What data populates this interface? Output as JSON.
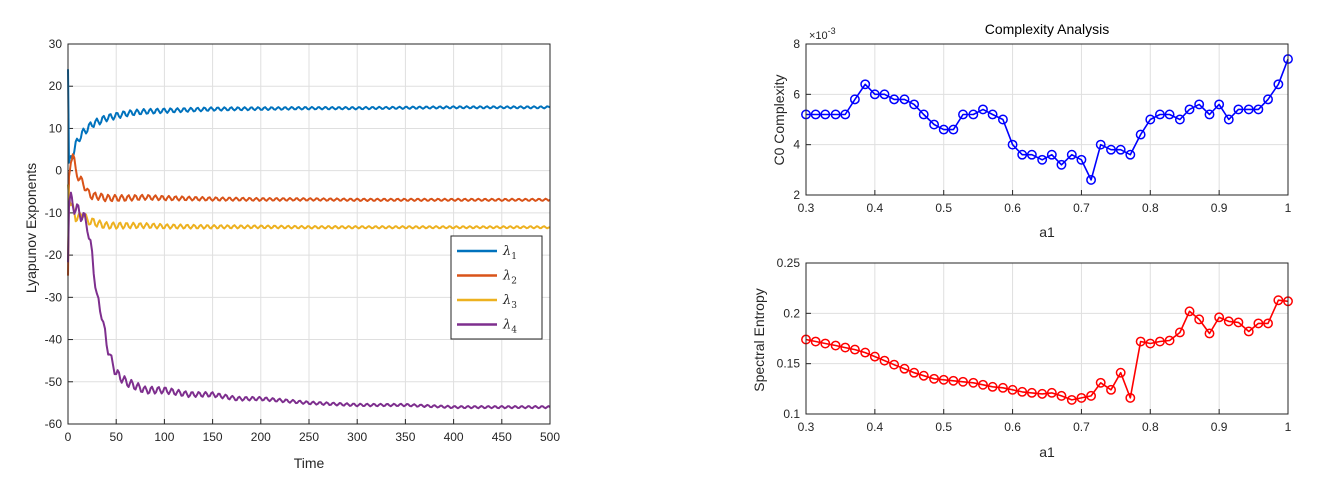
{
  "chart_data": [
    {
      "type": "line",
      "xlabel": "Time",
      "ylabel": "Lyapunov Exponents",
      "xlim": [
        0,
        500
      ],
      "ylim": [
        -60,
        30
      ],
      "xticks": [
        "0",
        "50",
        "100",
        "150",
        "200",
        "250",
        "300",
        "350",
        "400",
        "450",
        "500"
      ],
      "yticks": [
        "-60",
        "-50",
        "-40",
        "-30",
        "-20",
        "-10",
        "0",
        "10",
        "20",
        "30"
      ],
      "grid": true,
      "legend_position": "right",
      "series": [
        {
          "name": "λ1",
          "sub": "1",
          "color": "#0072BD",
          "x": [
            0,
            1,
            3,
            5,
            8,
            12,
            16,
            20,
            25,
            30,
            40,
            50,
            60,
            70,
            80,
            90,
            100,
            150,
            200,
            250,
            300,
            350,
            400,
            450,
            500
          ],
          "y": [
            24,
            1,
            3,
            4,
            6,
            8,
            9,
            10,
            11,
            11.5,
            12.5,
            13,
            13.5,
            13.8,
            14,
            14.1,
            14.2,
            14.6,
            14.7,
            14.8,
            14.8,
            14.9,
            15,
            15,
            15
          ]
        },
        {
          "name": "λ2",
          "sub": "2",
          "color": "#D95319",
          "x": [
            0,
            1,
            3,
            5,
            8,
            12,
            16,
            20,
            25,
            30,
            40,
            50,
            60,
            80,
            100,
            150,
            200,
            250,
            300,
            350,
            400,
            450,
            500
          ],
          "y": [
            -26,
            -2,
            3,
            4,
            0,
            -2,
            -3,
            -5,
            -6,
            -6,
            -6.5,
            -6.5,
            -6.5,
            -6.3,
            -6.5,
            -6.7,
            -6.8,
            -6.8,
            -6.9,
            -6.9,
            -6.9,
            -6.9,
            -6.9
          ]
        },
        {
          "name": "λ3",
          "sub": "3",
          "color": "#EDB120",
          "x": [
            0,
            1,
            3,
            5,
            8,
            12,
            16,
            20,
            25,
            30,
            40,
            50,
            60,
            80,
            100,
            150,
            200,
            250,
            300,
            350,
            400,
            450,
            500
          ],
          "y": [
            -3,
            -5,
            -8,
            -9,
            -11,
            -11,
            -10,
            -12,
            -12,
            -12.5,
            -13,
            -13,
            -13,
            -13,
            -13.2,
            -13.3,
            -13.3,
            -13.4,
            -13.4,
            -13.4,
            -13.4,
            -13.4,
            -13.4
          ]
        },
        {
          "name": "λ4",
          "sub": "4",
          "color": "#7E2F8E",
          "x": [
            0,
            1,
            3,
            5,
            8,
            12,
            16,
            20,
            25,
            30,
            35,
            40,
            45,
            50,
            60,
            70,
            80,
            90,
            100,
            125,
            150,
            175,
            200,
            250,
            300,
            350,
            400,
            450,
            500
          ],
          "y": [
            -20,
            -8,
            -7,
            -8,
            -9,
            -10,
            -11,
            -13,
            -20,
            -30,
            -34,
            -41,
            -45,
            -48,
            -50,
            -51,
            -52,
            -52,
            -52,
            -53,
            -53,
            -54,
            -54,
            -55,
            -55.5,
            -55.5,
            -56,
            -56,
            -56
          ]
        }
      ]
    },
    {
      "type": "line",
      "title": "Complexity Analysis",
      "xlabel": "a1",
      "ylabel": "C0 Complexity",
      "y_exponent_label": "×10",
      "y_exponent": "-3",
      "xlim": [
        0.3,
        1
      ],
      "ylim": [
        2,
        8
      ],
      "xticks": [
        "0.3",
        "0.4",
        "0.5",
        "0.6",
        "0.7",
        "0.8",
        "0.9",
        "1"
      ],
      "yticks": [
        "2",
        "4",
        "6",
        "8"
      ],
      "grid": true,
      "marker": "circle",
      "series": [
        {
          "color": "#0000FF",
          "x": [
            0.3,
            0.314,
            0.328,
            0.343,
            0.357,
            0.371,
            0.386,
            0.4,
            0.414,
            0.428,
            0.443,
            0.457,
            0.471,
            0.486,
            0.5,
            0.514,
            0.528,
            0.543,
            0.557,
            0.571,
            0.586,
            0.6,
            0.614,
            0.628,
            0.643,
            0.657,
            0.671,
            0.686,
            0.7,
            0.714,
            0.728,
            0.743,
            0.757,
            0.771,
            0.786,
            0.8,
            0.814,
            0.828,
            0.843,
            0.857,
            0.871,
            0.886,
            0.9,
            0.914,
            0.928,
            0.943,
            0.957,
            0.971,
            0.986,
            1.0
          ],
          "y": [
            5.2,
            5.2,
            5.2,
            5.2,
            5.2,
            5.8,
            6.4,
            6.0,
            6.0,
            5.8,
            5.8,
            5.6,
            5.2,
            4.8,
            4.6,
            4.6,
            5.2,
            5.2,
            5.4,
            5.2,
            5.0,
            4.0,
            3.6,
            3.6,
            3.4,
            3.6,
            3.2,
            3.6,
            3.4,
            2.6,
            4.0,
            3.8,
            3.8,
            3.6,
            4.4,
            5.0,
            5.2,
            5.2,
            5.0,
            5.4,
            5.6,
            5.2,
            5.6,
            5.0,
            5.4,
            5.4,
            5.4,
            5.8,
            6.4,
            7.4
          ]
        }
      ]
    },
    {
      "type": "line",
      "xlabel": "a1",
      "ylabel": "Spectral Entropy",
      "xlim": [
        0.3,
        1
      ],
      "ylim": [
        0.1,
        0.25
      ],
      "xticks": [
        "0.3",
        "0.4",
        "0.5",
        "0.6",
        "0.7",
        "0.8",
        "0.9",
        "1"
      ],
      "yticks": [
        "0.1",
        "0.15",
        "0.2",
        "0.25"
      ],
      "grid": true,
      "marker": "circle",
      "series": [
        {
          "color": "#FF0000",
          "x": [
            0.3,
            0.314,
            0.328,
            0.343,
            0.357,
            0.371,
            0.386,
            0.4,
            0.414,
            0.428,
            0.443,
            0.457,
            0.471,
            0.486,
            0.5,
            0.514,
            0.528,
            0.543,
            0.557,
            0.571,
            0.586,
            0.6,
            0.614,
            0.628,
            0.643,
            0.657,
            0.671,
            0.686,
            0.7,
            0.714,
            0.728,
            0.743,
            0.757,
            0.771,
            0.786,
            0.8,
            0.814,
            0.828,
            0.843,
            0.857,
            0.871,
            0.886,
            0.9,
            0.914,
            0.928,
            0.943,
            0.957,
            0.971,
            0.986,
            1.0
          ],
          "y": [
            0.174,
            0.172,
            0.17,
            0.168,
            0.166,
            0.164,
            0.161,
            0.157,
            0.153,
            0.149,
            0.145,
            0.141,
            0.138,
            0.135,
            0.134,
            0.133,
            0.132,
            0.131,
            0.129,
            0.127,
            0.126,
            0.124,
            0.122,
            0.121,
            0.12,
            0.121,
            0.118,
            0.114,
            0.116,
            0.118,
            0.131,
            0.124,
            0.141,
            0.116,
            0.172,
            0.17,
            0.172,
            0.173,
            0.181,
            0.202,
            0.194,
            0.18,
            0.196,
            0.192,
            0.191,
            0.182,
            0.19,
            0.19,
            0.213,
            0.212
          ]
        }
      ]
    }
  ]
}
